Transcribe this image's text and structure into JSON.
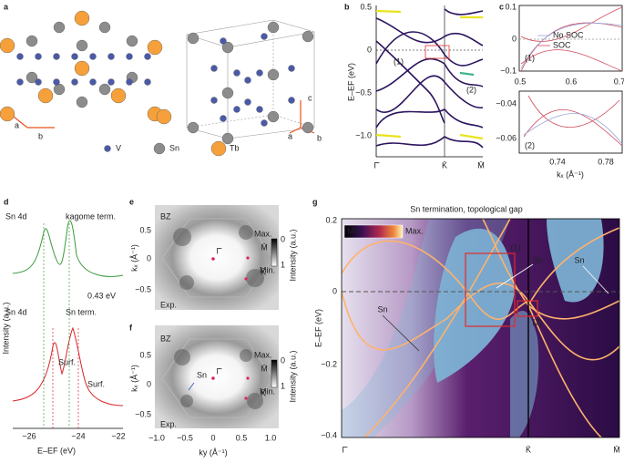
{
  "panels": {
    "a": {
      "label": "a",
      "axes": [
        "a",
        "b",
        "c",
        "a",
        "b"
      ],
      "legend": [
        "V",
        "Sn",
        "Tb"
      ]
    },
    "b": {
      "label": "b",
      "y_label": "E–EF (eV)",
      "y_ticks": [
        "0.5",
        "0",
        "−0.5",
        "−1.0"
      ],
      "x_ticks": [
        "Γ̄",
        "K̄",
        "M̄"
      ],
      "tags": [
        "(1)",
        "(2)"
      ]
    },
    "c": {
      "label": "c",
      "top_y_ticks": [
        "0.1",
        "0",
        "−0.1"
      ],
      "top_x_ticks": [
        "0.5",
        "0.6",
        "0.7"
      ],
      "legend": [
        "No SOC",
        "SOC"
      ],
      "top_tag": "(1)",
      "bottom_y_ticks": [
        "−0.04",
        "−0.06"
      ],
      "bottom_x_ticks": [
        "0.74",
        "0.78"
      ],
      "bottom_tag": "(2)",
      "x_label": "kₓ (Å⁻¹)"
    },
    "d": {
      "label": "d",
      "upper_title": "Sn 4d",
      "upper_note": "kagome term.",
      "shift": "0.43 eV",
      "lower_title": "Sn 4d",
      "lower_note": "Sn term.",
      "surf": [
        "Surf.",
        "Surf."
      ],
      "y_label": "Intensity (a.u.)",
      "x_ticks": [
        "−26",
        "−24",
        "−22"
      ],
      "x_label": "E–EF (eV)"
    },
    "e": {
      "label": "e",
      "bz": "BZ",
      "exp": "Exp.",
      "points": [
        "Γ̄",
        "M̄",
        "K̄"
      ],
      "colorbar": [
        "Max.",
        "0",
        "1",
        "Min."
      ],
      "cb_label": "Intensity (a.u.)",
      "y_label": "kₓ (Å⁻¹)",
      "y_ticks": [
        "0.5",
        "0",
        "−0.5"
      ]
    },
    "f": {
      "label": "f",
      "bz": "BZ",
      "exp": "Exp.",
      "sn": "Sn",
      "points": [
        "Γ̄",
        "M̄",
        "K̄"
      ],
      "colorbar": [
        "Max.",
        "0",
        "1",
        "Min."
      ],
      "cb_label": "Intensity (a.u.)",
      "y_label": "kₓ (Å⁻¹)",
      "y_ticks": [
        "0.5",
        "0",
        "−0.5"
      ],
      "x_ticks": [
        "−1.0",
        "−0.5",
        "0",
        "0.5",
        "1.0"
      ],
      "x_label": "ky (Å⁻¹)"
    },
    "g": {
      "label": "g",
      "title": "Sn termination, topological gap",
      "colorbar": [
        "Min.",
        "Max."
      ],
      "tags": [
        "(1)",
        "(2)"
      ],
      "sn": [
        "Sn",
        "Sn",
        "Sn"
      ],
      "y_label": "E–EF (eV)",
      "y_ticks": [
        "0.2",
        "0",
        "−0.2",
        "−0.4"
      ],
      "x_ticks": [
        "Γ̄",
        "K̄",
        "M̄"
      ]
    }
  }
}
